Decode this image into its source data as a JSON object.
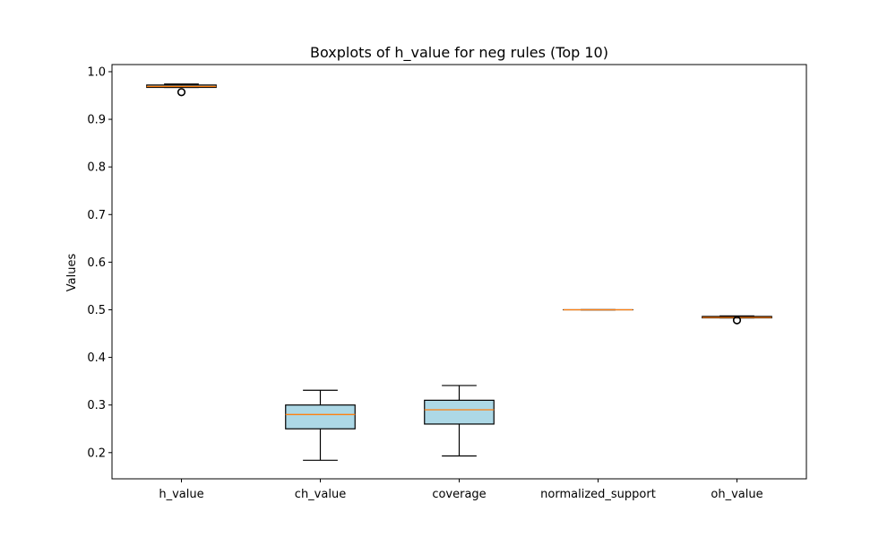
{
  "chart_data": {
    "type": "boxplot",
    "title": "Boxplots of h_value for neg rules (Top 10)",
    "xlabel": "",
    "ylabel": "Values",
    "ylim": [
      0.145,
      1.015
    ],
    "yticks": [
      "0.2",
      "0.3",
      "0.4",
      "0.5",
      "0.6",
      "0.7",
      "0.8",
      "0.9",
      "1.0"
    ],
    "ytick_values": [
      0.2,
      0.3,
      0.4,
      0.5,
      0.6,
      0.7,
      0.8,
      0.9,
      1.0
    ],
    "grid": false,
    "box_fill": "#add8e6",
    "median_color": "#ff7f0e",
    "categories": [
      "h_value",
      "ch_value",
      "coverage",
      "normalized_support",
      "oh_value"
    ],
    "boxes": [
      {
        "category": "h_value",
        "whisker_low": 0.967,
        "q1": 0.967,
        "median": 0.969,
        "q3": 0.972,
        "whisker_high": 0.974,
        "outliers": [
          0.957
        ]
      },
      {
        "category": "ch_value",
        "whisker_low": 0.184,
        "q1": 0.25,
        "median": 0.28,
        "q3": 0.3,
        "whisker_high": 0.331,
        "outliers": []
      },
      {
        "category": "coverage",
        "whisker_low": 0.193,
        "q1": 0.26,
        "median": 0.29,
        "q3": 0.31,
        "whisker_high": 0.341,
        "outliers": []
      },
      {
        "category": "normalized_support",
        "whisker_low": 0.5,
        "q1": 0.5,
        "median": 0.5,
        "q3": 0.5,
        "whisker_high": 0.5,
        "outliers": []
      },
      {
        "category": "oh_value",
        "whisker_low": 0.483,
        "q1": 0.483,
        "median": 0.484,
        "q3": 0.486,
        "whisker_high": 0.487,
        "outliers": [
          0.478
        ]
      }
    ]
  }
}
